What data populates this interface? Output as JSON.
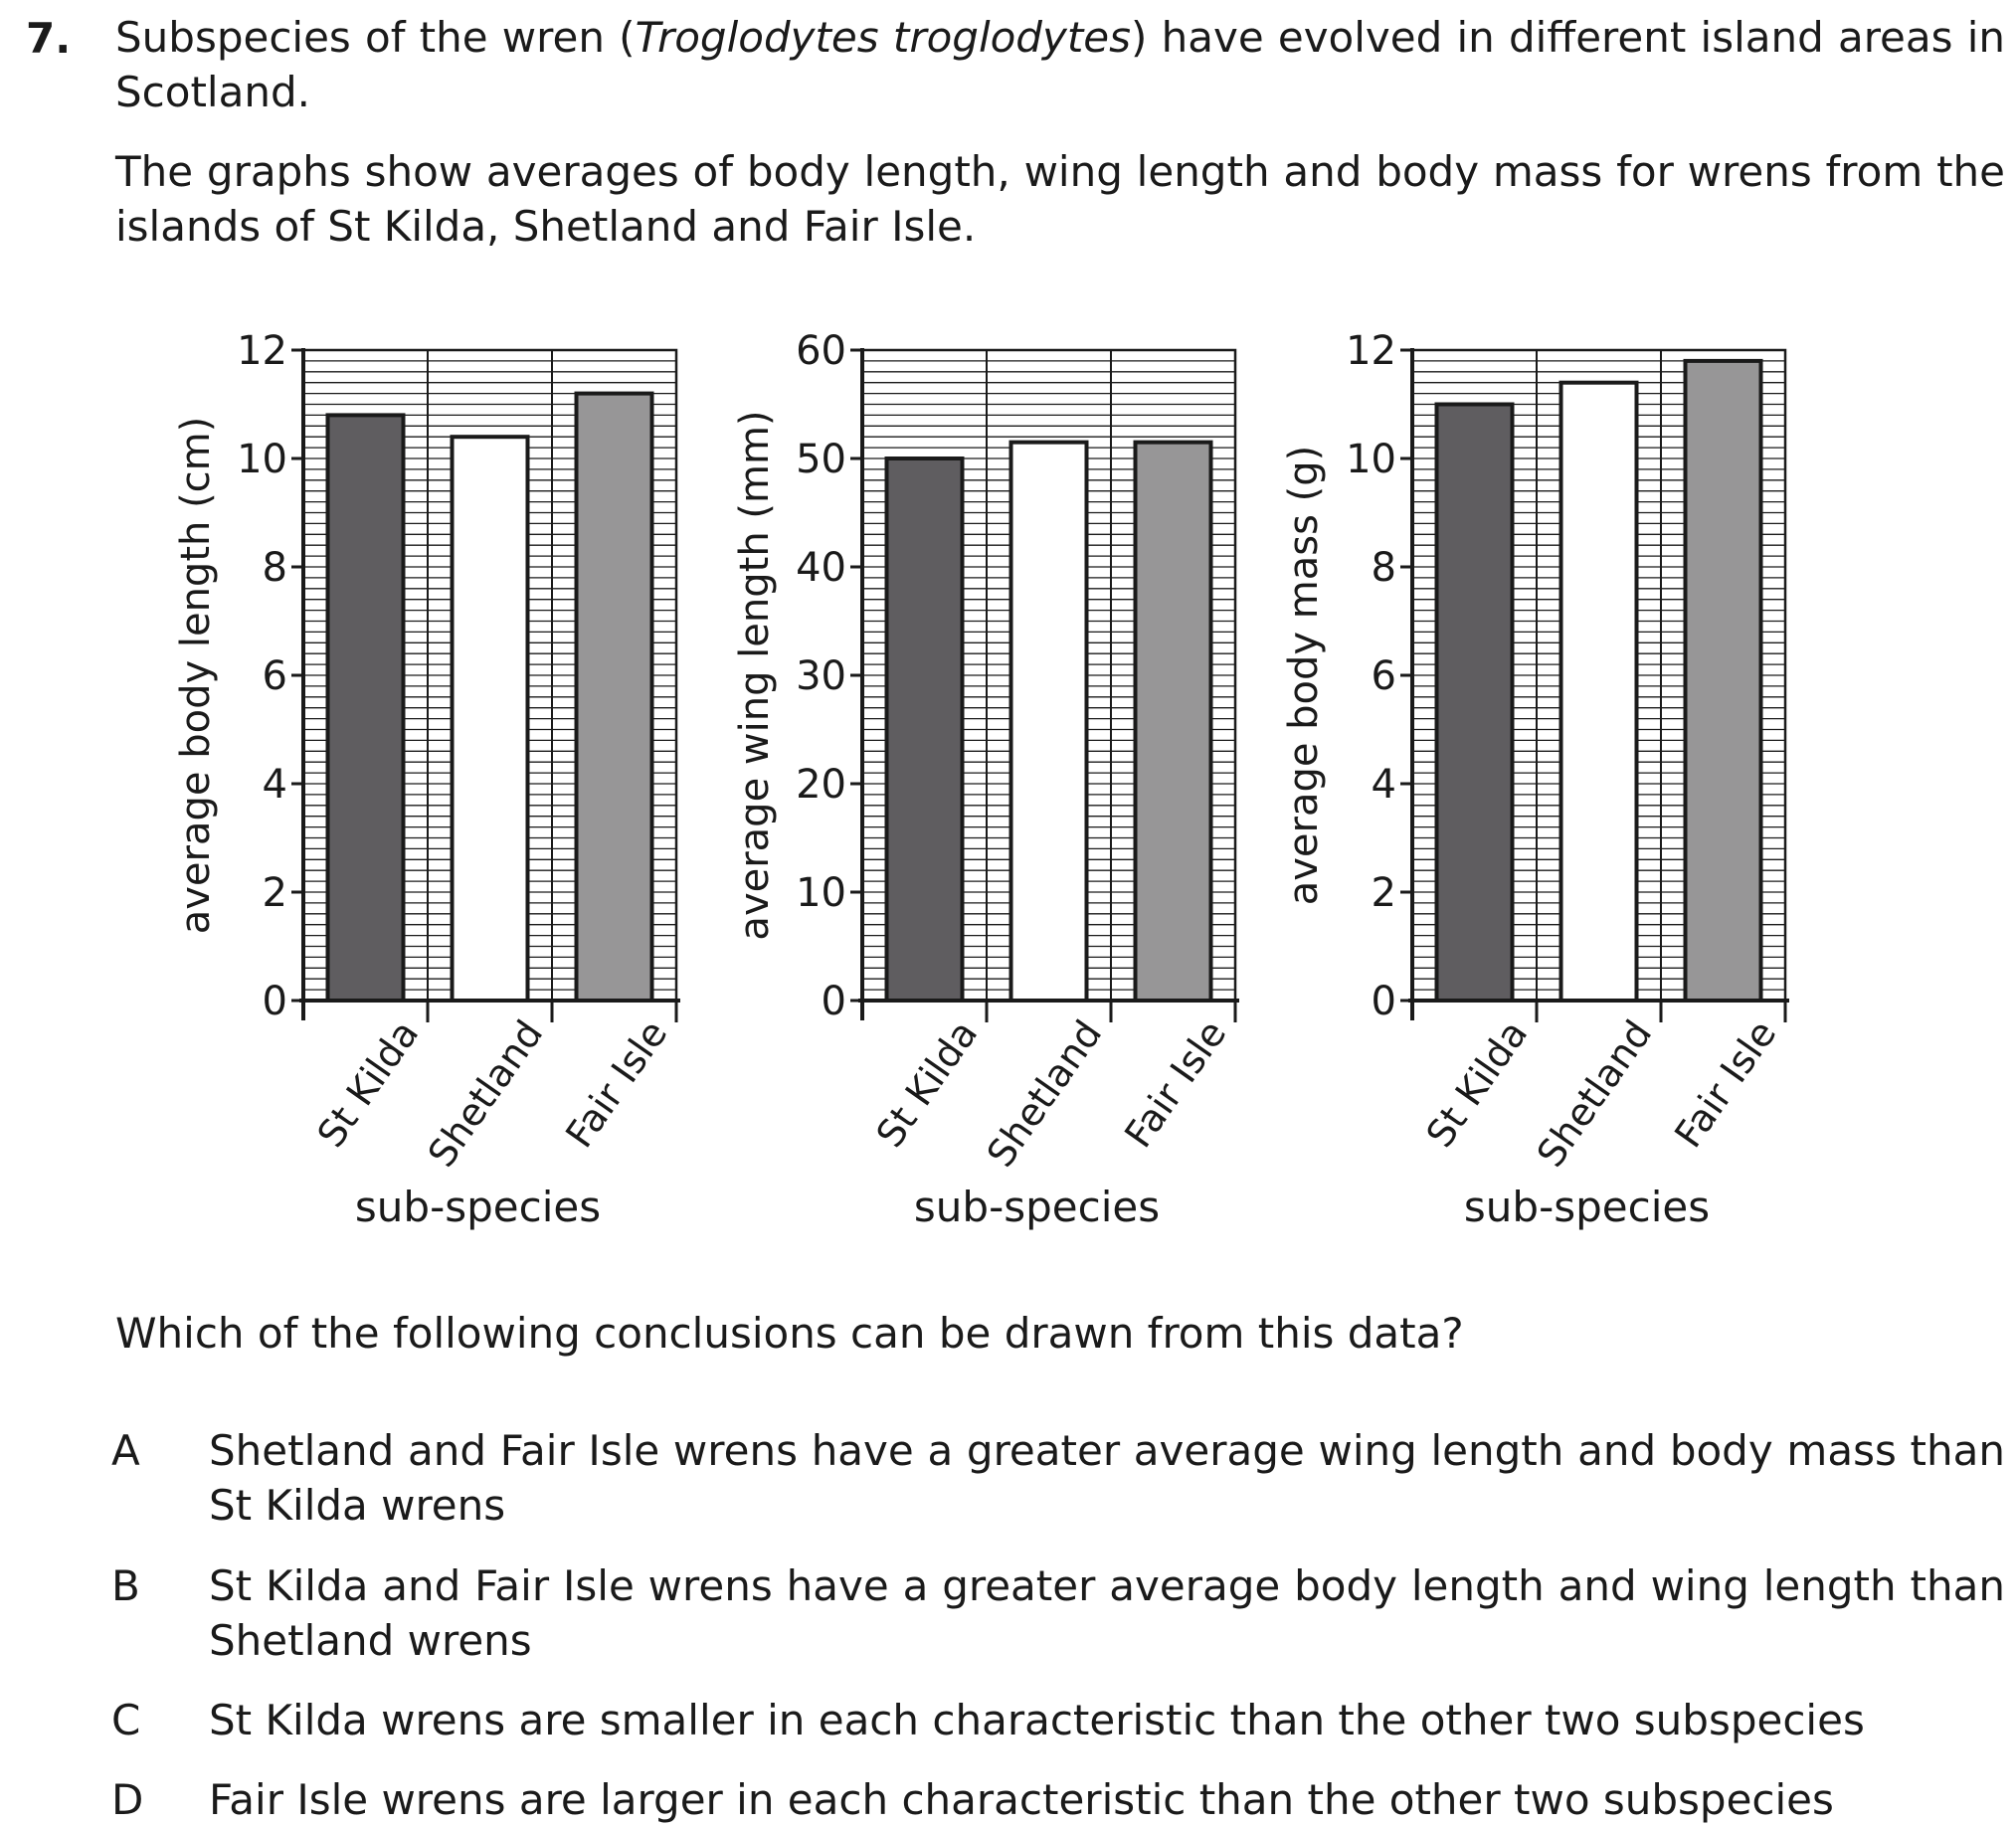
{
  "question": {
    "number": "7.",
    "intro_parts": [
      "Subspecies of the wren (",
      "Troglodytes troglodytes",
      ") have evolved in different island areas in Scotland."
    ],
    "intro2": "The graphs show averages of body length, wing length and body mass for wrens from the islands of St Kilda, Shetland and Fair Isle.",
    "prompt": "Which of the following conclusions can be drawn from this data?",
    "options": [
      {
        "letter": "A",
        "text": "Shetland and Fair Isle wrens have a greater average wing length and body mass than St Kilda wrens"
      },
      {
        "letter": "B",
        "text": "St Kilda and Fair Isle wrens have a greater average body length and wing length than Shetland wrens"
      },
      {
        "letter": "C",
        "text": "St Kilda wrens are smaller in each characteristic than the other two subspecies"
      },
      {
        "letter": "D",
        "text": "Fair Isle wrens are larger in each characteristic than the other two subspecies"
      }
    ]
  },
  "colors": {
    "St Kilda": "#5f5d60",
    "Shetland": "#ffffff",
    "Fair Isle": "#979697",
    "grid": "#1a1a1a"
  },
  "chart_data": [
    {
      "type": "bar",
      "categories": [
        "St Kilda",
        "Shetland",
        "Fair Isle"
      ],
      "values": [
        10.8,
        10.4,
        11.2
      ],
      "xlabel": "sub-species",
      "ylabel": "average body length (cm)",
      "ylim": [
        0,
        12
      ],
      "yticks": [
        "0",
        "2",
        "4",
        "6",
        "8",
        "10",
        "12"
      ],
      "grid": true
    },
    {
      "type": "bar",
      "categories": [
        "St Kilda",
        "Shetland",
        "Fair Isle"
      ],
      "values": [
        50,
        51.5,
        51.5
      ],
      "xlabel": "sub-species",
      "ylabel": "average wing length (mm)",
      "ylim": [
        0,
        60
      ],
      "yticks": [
        "0",
        "10",
        "20",
        "30",
        "40",
        "50",
        "60"
      ],
      "grid": true
    },
    {
      "type": "bar",
      "categories": [
        "St Kilda",
        "Shetland",
        "Fair Isle"
      ],
      "values": [
        11.0,
        11.4,
        11.8
      ],
      "xlabel": "sub-species",
      "ylabel": "average body mass (g)",
      "ylim": [
        0,
        12
      ],
      "yticks": [
        "0",
        "2",
        "4",
        "6",
        "8",
        "10",
        "12"
      ],
      "grid": true
    }
  ]
}
